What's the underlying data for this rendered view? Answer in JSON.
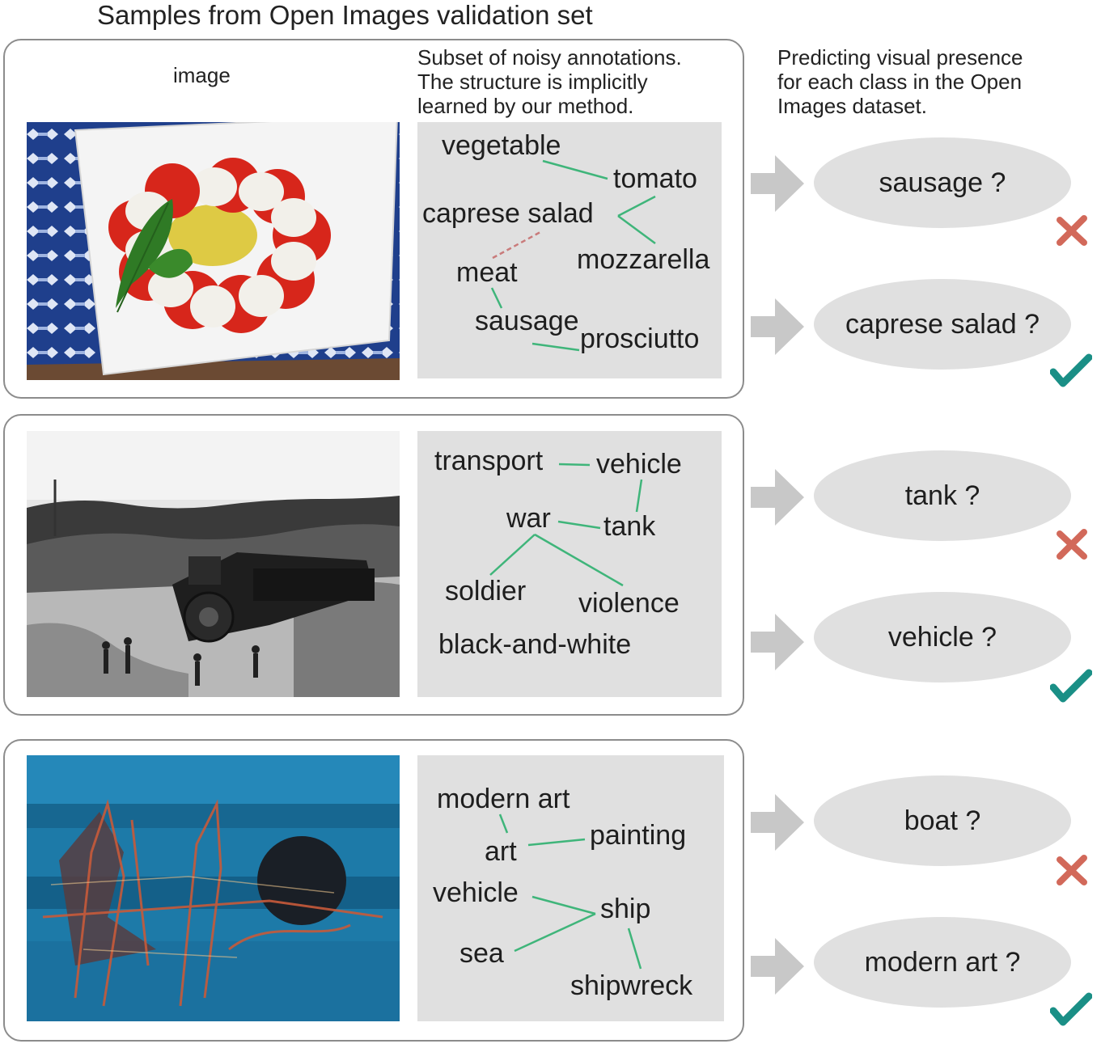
{
  "title": "Samples from Open Images validation set",
  "headers": {
    "image": "image",
    "annotations": "Subset of noisy annotations.\nThe structure is implicitly\nlearned by our method.",
    "predictions": "Predicting visual presence\nfor each class in the Open\nImages dataset."
  },
  "colors": {
    "link": "#3fb57a",
    "negative_link": "#c97b7b",
    "cross": "#d2695a",
    "check": "#1a8f86",
    "arrow": "#c8c8c8",
    "bubble": "#e0e0e0"
  },
  "rows": [
    {
      "image": "caprese salad photo",
      "labels": {
        "vegetable": "vegetable",
        "tomato": "tomato",
        "caprese": "caprese salad",
        "meat": "meat",
        "mozzarella": "mozzarella",
        "sausage": "sausage",
        "prosciutto": "prosciutto"
      },
      "queries": [
        {
          "text": "sausage ?",
          "result": "cross-icon"
        },
        {
          "text": "caprese salad ?",
          "result": "check-icon"
        }
      ]
    },
    {
      "image": "black-and-white train wreck photo",
      "labels": {
        "transport": "transport",
        "vehicle": "vehicle",
        "war": "war",
        "tank": "tank",
        "soldier": "soldier",
        "violence": "violence",
        "bw": "black-and-white"
      },
      "queries": [
        {
          "text": "tank ?",
          "result": "cross-icon"
        },
        {
          "text": "vehicle ?",
          "result": "check-icon"
        }
      ]
    },
    {
      "image": "blue abstract painting",
      "labels": {
        "modernart": "modern art",
        "art": "art",
        "painting": "painting",
        "vehicle": "vehicle",
        "ship": "ship",
        "sea": "sea",
        "shipwreck": "shipwreck"
      },
      "queries": [
        {
          "text": "boat ?",
          "result": "cross-icon"
        },
        {
          "text": "modern art ?",
          "result": "check-icon"
        }
      ]
    }
  ]
}
